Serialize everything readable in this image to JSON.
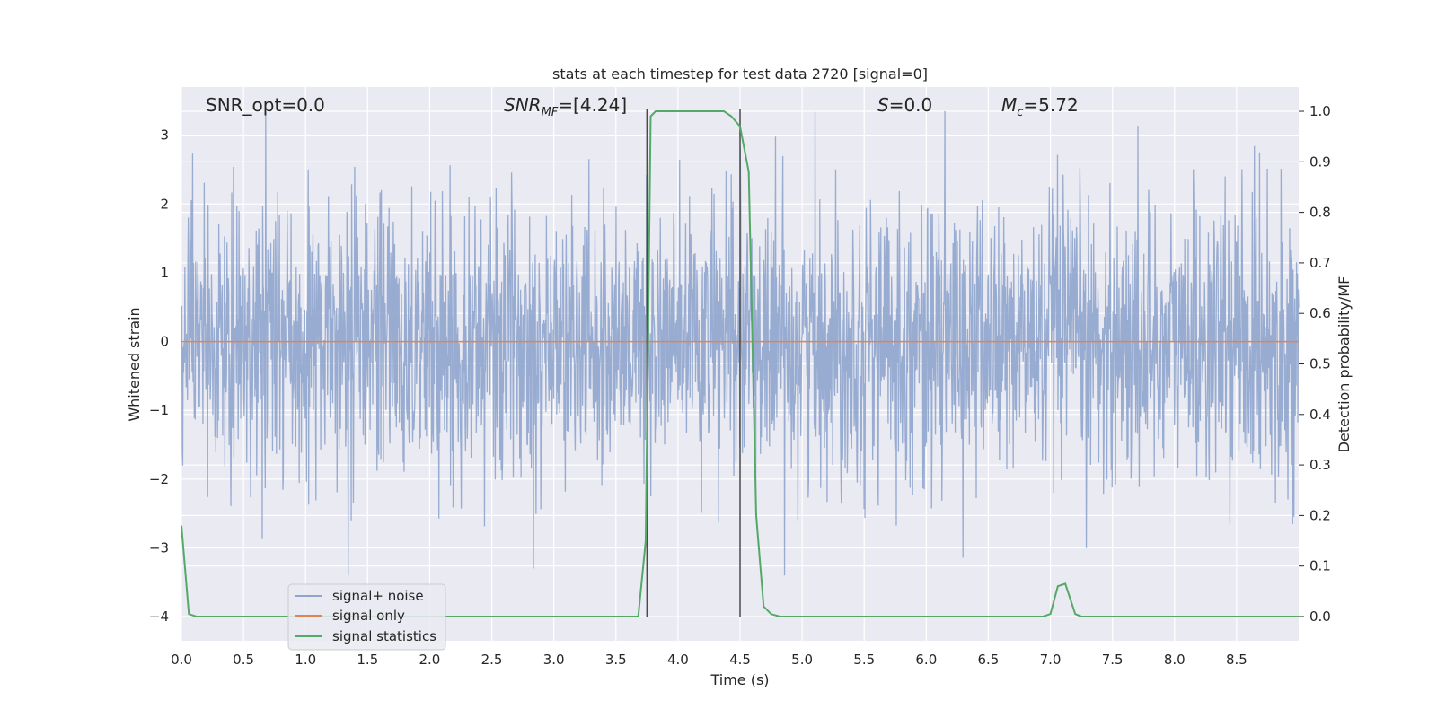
{
  "chart_data": {
    "type": "line",
    "title": "stats at each timestep for test data 2720 [signal=0]",
    "xlabel": "Time (s)",
    "ylabel": "Whitened strain",
    "ylabel_right": "Detection probability/MF",
    "xlim": [
      0,
      9
    ],
    "ylim": [
      -4.35,
      3.7
    ],
    "ylim_right": [
      -0.048,
      1.048
    ],
    "x_ticks": [
      0.0,
      0.5,
      1.0,
      1.5,
      2.0,
      2.5,
      3.0,
      3.5,
      4.0,
      4.5,
      5.0,
      5.5,
      6.0,
      6.5,
      7.0,
      7.5,
      8.0,
      8.5
    ],
    "x_tick_labels": [
      "0.0",
      "0.5",
      "1.0",
      "1.5",
      "2.0",
      "2.5",
      "3.0",
      "3.5",
      "4.0",
      "4.5",
      "5.0",
      "5.5",
      "6.0",
      "6.5",
      "7.0",
      "7.5",
      "8.0",
      "8.5"
    ],
    "y_ticks": [
      3,
      2,
      1,
      0,
      -1,
      -2,
      -3,
      -4
    ],
    "y_tick_labels": [
      "3",
      "2",
      "1",
      "0",
      "−1",
      "−2",
      "−3",
      "−4"
    ],
    "y_right_ticks": [
      1.0,
      0.9,
      0.8,
      0.7,
      0.6,
      0.5,
      0.4,
      0.3,
      0.2,
      0.1,
      0.0
    ],
    "y_right_tick_labels": [
      "1.0",
      "0.9",
      "0.8",
      "0.7",
      "0.6",
      "0.5",
      "0.4",
      "0.3",
      "0.2",
      "0.1",
      "0.0"
    ],
    "grid": true,
    "legend_position": "lower-left",
    "annotations": {
      "snr_opt": "SNR_opt=0.0",
      "snr_mf_main": "SNR",
      "snr_mf_sub": "MF",
      "snr_mf_value": "=[4.24]",
      "s_main": "S",
      "s_value": "=0.0",
      "mc_main": "M",
      "mc_sub": "c",
      "mc_value": "=5.72"
    },
    "vertical_markers": [
      3.75,
      4.5
    ],
    "series": [
      {
        "name": "signal+ noise",
        "axis": "left",
        "color": "#8fa5cd",
        "noise_amplitude_range": [
          -3.4,
          3.35
        ]
      },
      {
        "name": "signal only",
        "axis": "left",
        "color": "#dd8452",
        "x": [
          0,
          9
        ],
        "y": [
          0,
          0
        ]
      },
      {
        "name": "signal statistics",
        "axis": "right",
        "color": "#55a868",
        "x": [
          0.0,
          0.06,
          0.12,
          0.5,
          1.0,
          1.5,
          2.0,
          2.5,
          3.0,
          3.5,
          3.68,
          3.74,
          3.78,
          3.82,
          4.0,
          4.2,
          4.37,
          4.43,
          4.5,
          4.57,
          4.63,
          4.69,
          4.75,
          4.82,
          5.0,
          5.5,
          6.0,
          6.5,
          6.94,
          7.0,
          7.06,
          7.12,
          7.2,
          7.25,
          7.31,
          7.5,
          8.0,
          8.5,
          9.0
        ],
        "y": [
          0.18,
          0.005,
          0.0,
          0.0,
          0.0,
          0.0,
          0.0,
          0.0,
          0.0,
          0.0,
          0.0,
          0.15,
          0.99,
          1.0,
          1.0,
          1.0,
          1.0,
          0.99,
          0.97,
          0.88,
          0.2,
          0.02,
          0.005,
          0.0,
          0.0,
          0.0,
          0.0,
          0.0,
          0.0,
          0.005,
          0.06,
          0.065,
          0.005,
          0.0,
          0.0,
          0.0,
          0.0,
          0.0,
          0.0
        ]
      }
    ]
  },
  "colors": {
    "plot_background": "#eaeaf2",
    "grid": "#ffffff",
    "marker_line": "#4a4a4a"
  }
}
